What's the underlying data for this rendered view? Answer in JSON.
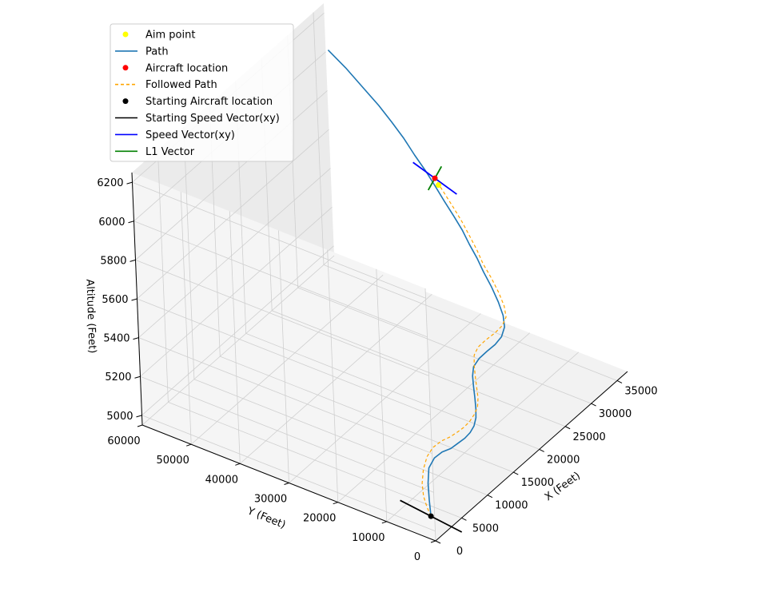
{
  "chart_data": {
    "type": "line",
    "title": "",
    "xlabel": "X (Feet)",
    "ylabel": "Y (Feet)",
    "zlabel": "Altitude (Feet)",
    "xlim": [
      0,
      37000
    ],
    "ylim": [
      0,
      60000
    ],
    "zlim": [
      4950,
      6250
    ],
    "grid": true,
    "legend_position": "top-left",
    "x_ticks": [
      "0",
      "5000",
      "10000",
      "15000",
      "20000",
      "25000",
      "30000",
      "35000"
    ],
    "y_ticks": [
      "0",
      "10000",
      "20000",
      "30000",
      "40000",
      "50000",
      "60000"
    ],
    "z_ticks": [
      "5000",
      "5200",
      "5400",
      "5600",
      "5800",
      "6000",
      "6200"
    ],
    "legend": [
      {
        "label": "Aim point",
        "kind": "marker",
        "color": "#ffff00"
      },
      {
        "label": "Path",
        "kind": "line",
        "color": "#1f77b4"
      },
      {
        "label": "Aircraft location",
        "kind": "marker",
        "color": "#ff0000"
      },
      {
        "label": "Followed Path",
        "kind": "dashed",
        "color": "#ffa500"
      },
      {
        "label": "Starting Aircraft location",
        "kind": "marker",
        "color": "#000000"
      },
      {
        "label": "Starting Speed Vector(xy)",
        "kind": "line",
        "color": "#000000"
      },
      {
        "label": "Speed Vector(xy)",
        "kind": "line",
        "color": "#0000ff"
      },
      {
        "label": "L1 Vector",
        "kind": "line",
        "color": "#008000"
      }
    ],
    "series": [
      {
        "name": "Path",
        "color": "#1f77b4",
        "x": [
          2000,
          3600,
          5300,
          6900,
          8000,
          8600,
          8900,
          9300,
          9800,
          10200,
          10700,
          11300,
          11900,
          12700,
          13600,
          14400,
          15100,
          15900,
          16700,
          17500,
          18300,
          19200,
          20100,
          21100,
          22200,
          23300,
          24200,
          25100,
          26000,
          26900,
          27800,
          28800,
          29800,
          30800,
          31900,
          32900,
          33900,
          35000,
          36100,
          37000
        ],
        "y": [
          3000,
          5000,
          7000,
          8500,
          8500,
          7500,
          6000,
          5000,
          4000,
          3300,
          3000,
          3200,
          3800,
          4800,
          6000,
          7000,
          7500,
          7200,
          6400,
          5500,
          5000,
          5300,
          6500,
          8500,
          11000,
          13800,
          16000,
          18500,
          20800,
          23500,
          26300,
          29200,
          32200,
          35500,
          38800,
          42300,
          46000,
          50500,
          55000,
          59500
        ],
        "z": [
          5000,
          5026,
          5052,
          5078,
          5104,
          5130,
          5156,
          5182,
          5208,
          5234,
          5260,
          5286,
          5312,
          5338,
          5364,
          5390,
          5416,
          5442,
          5468,
          5494,
          5520,
          5546,
          5572,
          5598,
          5624,
          5650,
          5676,
          5702,
          5728,
          5754,
          5780,
          5806,
          5832,
          5858,
          5884,
          5910,
          5936,
          5962,
          5988,
          6014
        ]
      },
      {
        "name": "Followed Path",
        "color": "#ffa500",
        "dashed": true,
        "x": [
          2000,
          2400,
          3100,
          4200,
          5600,
          7000,
          8000,
          8700,
          9100,
          9500,
          9900,
          10400,
          10900,
          11500,
          12200,
          13000,
          13900,
          14700,
          15400,
          16100,
          16900,
          17700,
          18500,
          19300,
          20100,
          21000,
          22000,
          23000,
          24000,
          24900,
          25800,
          26700,
          27600,
          28500
        ],
        "y": [
          3000,
          4200,
          5600,
          7000,
          8200,
          8900,
          8700,
          7700,
          6300,
          5200,
          4200,
          3500,
          3100,
          3000,
          3600,
          4700,
          5900,
          6900,
          7600,
          7500,
          6700,
          5700,
          5000,
          5000,
          6200,
          8200,
          10700,
          13500,
          15800,
          18200,
          20600,
          23300,
          26100,
          28900
        ],
        "z": [
          5000,
          5026,
          5052,
          5078,
          5104,
          5130,
          5156,
          5182,
          5208,
          5234,
          5260,
          5286,
          5312,
          5338,
          5364,
          5390,
          5416,
          5442,
          5468,
          5494,
          5520,
          5546,
          5572,
          5598,
          5624,
          5650,
          5676,
          5702,
          5728,
          5754,
          5780,
          5806,
          5832,
          5858
        ]
      }
    ],
    "markers": [
      {
        "name": "Starting Aircraft location",
        "color": "#000000",
        "x": 2000,
        "y": 3000,
        "z": 5000
      },
      {
        "name": "Aircraft location",
        "color": "#ff0000",
        "x": 28500,
        "y": 28900,
        "z": 5858
      },
      {
        "name": "Aim point",
        "color": "#ffff00",
        "x": 27700,
        "y": 27300,
        "z": 5858
      }
    ],
    "vectors": [
      {
        "name": "Starting Speed Vector(xy)",
        "color": "#000000",
        "from": {
          "x": 2000,
          "y": 3000,
          "z": 5000
        },
        "dx": -1700,
        "dy": 1700
      },
      {
        "name": "Speed Vector(xy)",
        "color": "#0000ff",
        "from": {
          "x": 28500,
          "y": 28900,
          "z": 5858
        },
        "dx": -1400,
        "dy": 1000
      },
      {
        "name": "L1 Vector",
        "color": "#008000",
        "from": {
          "x": 28500,
          "y": 28900,
          "z": 5858
        },
        "dx": -800,
        "dy": -1600
      }
    ]
  }
}
